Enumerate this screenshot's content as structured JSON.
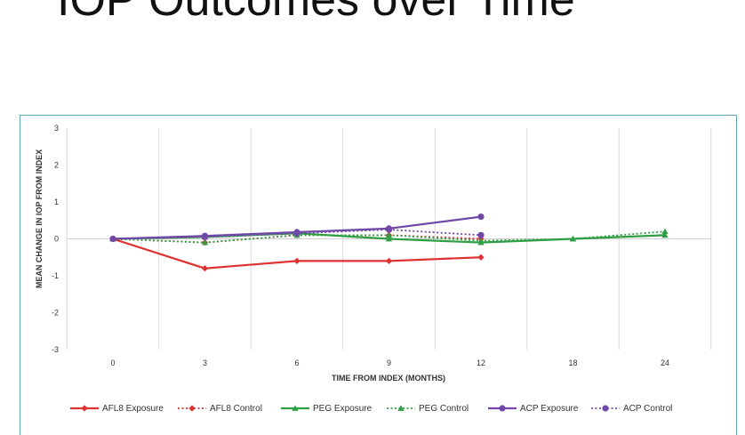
{
  "slide": {
    "title": "IOP Outcomes over Time"
  },
  "chart_data": {
    "type": "line",
    "title": "",
    "xlabel": "TIME FROM INDEX (MONTHS)",
    "ylabel": "MEAN CHANGE IN IOP FROM INDEX",
    "categories": [
      "0",
      "3",
      "6",
      "9",
      "12",
      "18",
      "24"
    ],
    "ylim": [
      -3,
      3
    ],
    "yticks": [
      "3",
      "2",
      "1",
      "0",
      "-1",
      "-2",
      "-3"
    ],
    "grid": "vertical",
    "legend_position": "bottom",
    "series": [
      {
        "name": "AFL8 Exposure",
        "color": "#e03131",
        "dash": "solid",
        "marker": "diamond",
        "values": [
          0,
          -0.8,
          -0.6,
          -0.6,
          -0.5,
          null,
          null
        ]
      },
      {
        "name": "AFL8 Control",
        "color": "#e03131",
        "dash": "dotted",
        "marker": "diamond",
        "values": [
          0,
          -0.1,
          0.1,
          0.1,
          0.0,
          null,
          null
        ]
      },
      {
        "name": "PEG Exposure",
        "color": "#2f9e44",
        "dash": "solid",
        "marker": "triangle",
        "values": [
          0,
          0.05,
          0.15,
          0.0,
          -0.1,
          0.0,
          0.1
        ]
      },
      {
        "name": "PEG Control",
        "color": "#2f9e44",
        "dash": "dotted",
        "marker": "triangle",
        "values": [
          0,
          -0.1,
          0.1,
          0.1,
          -0.05,
          0.0,
          0.2
        ]
      },
      {
        "name": "ACP Exposure",
        "color": "#7048a8",
        "dash": "solid",
        "marker": "circle",
        "values": [
          0,
          0.08,
          0.18,
          0.28,
          0.6,
          null,
          null
        ]
      },
      {
        "name": "ACP Control",
        "color": "#7048a8",
        "dash": "dotted",
        "marker": "circle",
        "values": [
          0,
          0.05,
          0.15,
          0.25,
          0.1,
          null,
          null
        ]
      }
    ]
  }
}
